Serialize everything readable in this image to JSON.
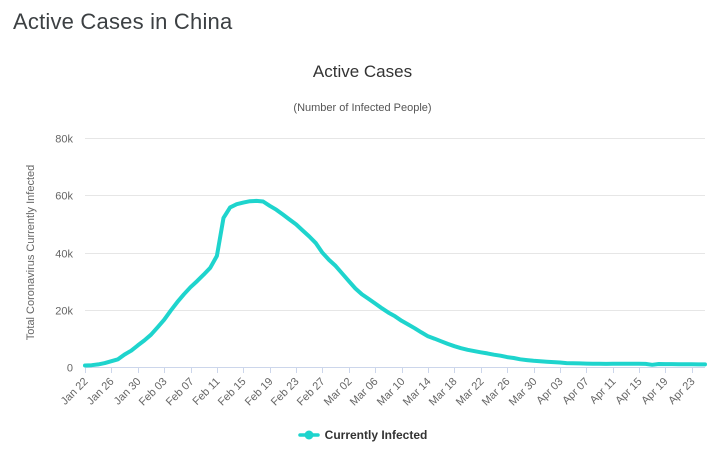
{
  "page": {
    "title": "Active Cases in China"
  },
  "colors": {
    "series_line": "#1ed4cd",
    "grid": "#e6e6e6",
    "axis_line": "#ccd6eb",
    "tick_label": "#666666",
    "title_text": "#333333",
    "subtitle_text": "#555555",
    "legend_text": "#333333",
    "page_title_text": "#3c4043"
  },
  "chart_data": {
    "type": "line",
    "title": "Active Cases",
    "subtitle": "(Number of Infected People)",
    "xlabel": "",
    "ylabel": "Total Coronavirus Currently Infected",
    "ylim": [
      0,
      80000
    ],
    "grid": true,
    "legend_position": "bottom",
    "x_tick_interval": 4,
    "y_ticks": [
      {
        "value": 0,
        "label": "0"
      },
      {
        "value": 20000,
        "label": "20k"
      },
      {
        "value": 40000,
        "label": "40k"
      },
      {
        "value": 60000,
        "label": "60k"
      },
      {
        "value": 80000,
        "label": "80k"
      }
    ],
    "categories": [
      "Jan 22",
      "Jan 23",
      "Jan 24",
      "Jan 25",
      "Jan 26",
      "Jan 27",
      "Jan 28",
      "Jan 29",
      "Jan 30",
      "Jan 31",
      "Feb 01",
      "Feb 02",
      "Feb 03",
      "Feb 04",
      "Feb 05",
      "Feb 06",
      "Feb 07",
      "Feb 08",
      "Feb 09",
      "Feb 10",
      "Feb 11",
      "Feb 12",
      "Feb 13",
      "Feb 14",
      "Feb 15",
      "Feb 16",
      "Feb 17",
      "Feb 18",
      "Feb 19",
      "Feb 20",
      "Feb 21",
      "Feb 22",
      "Feb 23",
      "Feb 24",
      "Feb 25",
      "Feb 26",
      "Feb 27",
      "Feb 28",
      "Feb 29",
      "Mar 01",
      "Mar 02",
      "Mar 03",
      "Mar 04",
      "Mar 05",
      "Mar 06",
      "Mar 07",
      "Mar 08",
      "Mar 09",
      "Mar 10",
      "Mar 11",
      "Mar 12",
      "Mar 13",
      "Mar 14",
      "Mar 15",
      "Mar 16",
      "Mar 17",
      "Mar 18",
      "Mar 19",
      "Mar 20",
      "Mar 21",
      "Mar 22",
      "Mar 23",
      "Mar 24",
      "Mar 25",
      "Mar 26",
      "Mar 27",
      "Mar 28",
      "Mar 29",
      "Mar 30",
      "Mar 31",
      "Apr 01",
      "Apr 02",
      "Apr 03",
      "Apr 04",
      "Apr 05",
      "Apr 06",
      "Apr 07",
      "Apr 08",
      "Apr 09",
      "Apr 10",
      "Apr 11",
      "Apr 12",
      "Apr 13",
      "Apr 14",
      "Apr 15",
      "Apr 16",
      "Apr 17",
      "Apr 18",
      "Apr 19",
      "Apr 20",
      "Apr 21",
      "Apr 22",
      "Apr 23",
      "Apr 24",
      "Apr 25"
    ],
    "series": [
      {
        "name": "Currently Infected",
        "color": "#1ed4cd",
        "values": [
          528,
          634,
          898,
          1367,
          2010,
          2693,
          4356,
          5694,
          7549,
          9307,
          11289,
          13870,
          16477,
          19675,
          22676,
          25381,
          27879,
          30017,
          32265,
          34680,
          38798,
          52096,
          55748,
          56873,
          57416,
          57934,
          58016,
          57805,
          56303,
          54965,
          53284,
          51527,
          49824,
          47672,
          45604,
          43258,
          39919,
          37414,
          35329,
          32652,
          30004,
          27433,
          25352,
          23784,
          22177,
          20533,
          19016,
          17721,
          16145,
          14831,
          13526,
          12094,
          10734,
          9898,
          8976,
          8056,
          7263,
          6569,
          6013,
          5549,
          5120,
          4735,
          4287,
          3947,
          3460,
          3128,
          2691,
          2396,
          2161,
          2004,
          1863,
          1727,
          1562,
          1376,
          1299,
          1242,
          1190,
          1160,
          1116,
          1089,
          1156,
          1107,
          1170,
          1137,
          1107,
          1081,
          768,
          1041,
          1017,
          999,
          982,
          959,
          938,
          915,
          901
        ]
      }
    ]
  }
}
